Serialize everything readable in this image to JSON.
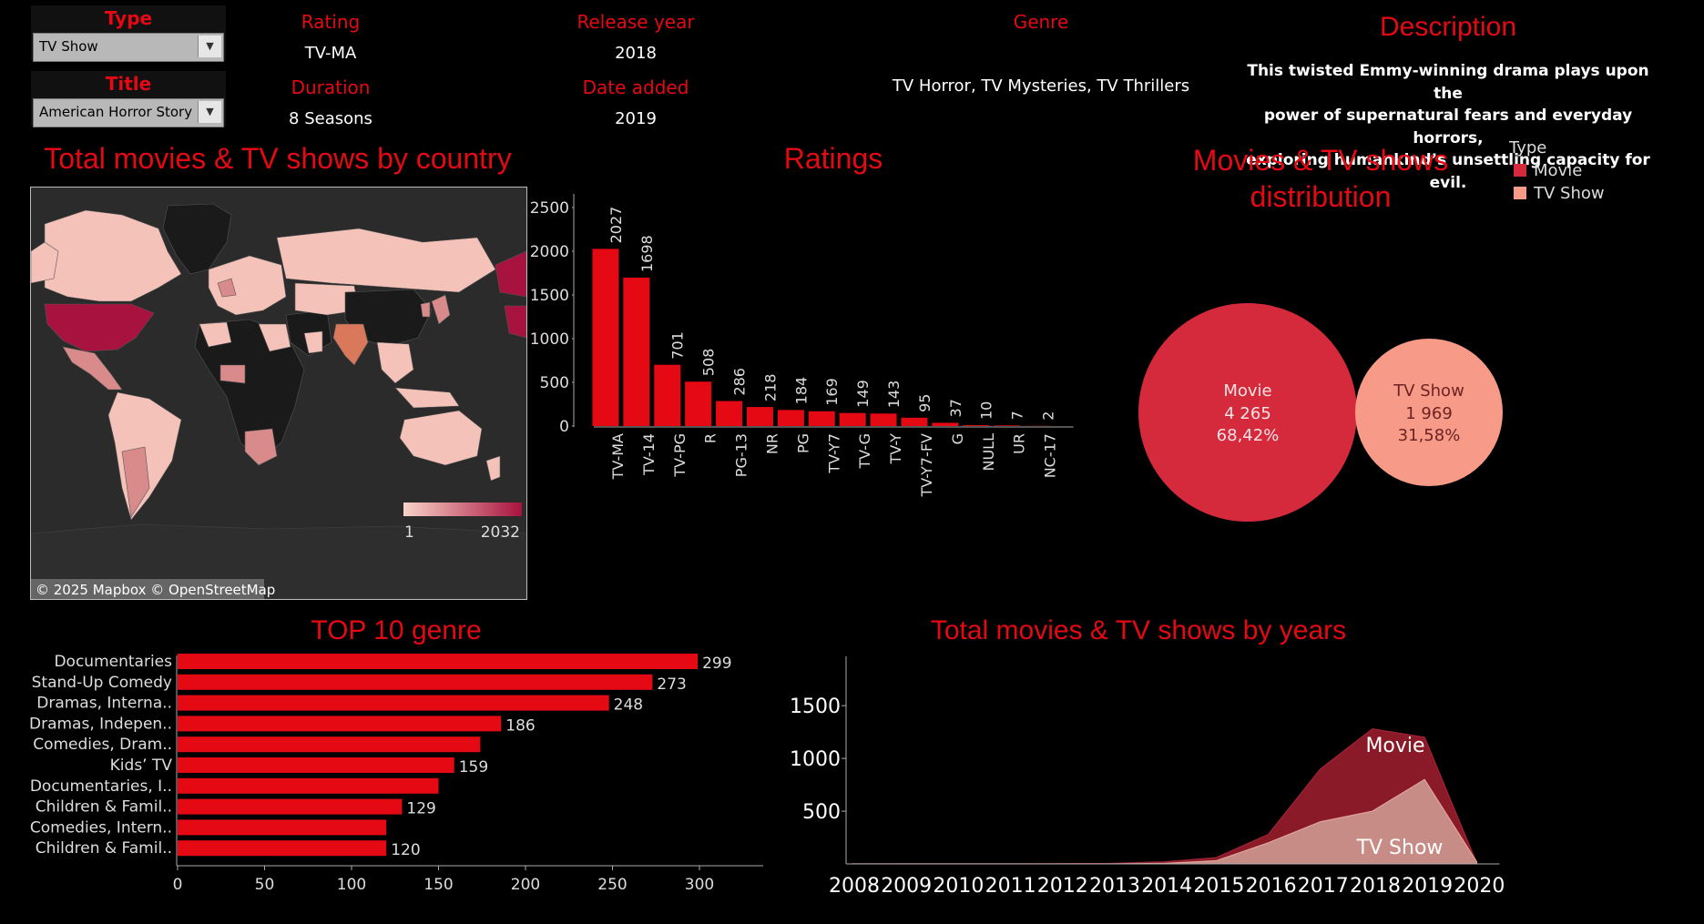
{
  "filters": {
    "type": {
      "label": "Type",
      "value": "TV Show"
    },
    "title": {
      "label": "Title",
      "value": "American Horror Story"
    }
  },
  "info": {
    "rating": {
      "label": "Rating",
      "value": "TV-MA"
    },
    "release_year": {
      "label": "Release year",
      "value": "2018"
    },
    "duration": {
      "label": "Duration",
      "value": "8 Seasons"
    },
    "date_added": {
      "label": "Date added",
      "value": "2019"
    },
    "genre": {
      "label": "Genre",
      "value": "TV Horror, TV Mysteries, TV Thrillers"
    },
    "description": {
      "label": "Description",
      "lines": [
        "This twisted Emmy-winning drama plays upon the",
        "power of supernatural fears and everyday horrors,",
        "exploring humankind’s unsettling capacity for evil."
      ]
    }
  },
  "map": {
    "title": "Total movies & TV shows by country",
    "legend_min": "1",
    "legend_max": "2032",
    "attribution": "© 2025 Mapbox © OpenStreetMap",
    "colors": {
      "ocean": "#2b2b2b",
      "low": "#f4c2b8",
      "mid": "#d98a8a",
      "high": "#a8123e",
      "none": "#1a1a1a"
    }
  },
  "ratings_title": "Ratings",
  "distribution": {
    "title_line1": "Movies & TV shows",
    "title_line2": "distribution",
    "legend_title": "Type",
    "items": [
      {
        "name": "Movie",
        "count": "4 265",
        "pct": "68,42%",
        "color": "#d42a3c"
      },
      {
        "name": "TV Show",
        "count": "1 969",
        "pct": "31,58%",
        "color": "#f79b88"
      }
    ]
  },
  "genre_title": "TOP 10 genre",
  "years_title": "Total movies & TV shows by years",
  "chart_data": [
    {
      "type": "bar",
      "title": "Ratings",
      "categories": [
        "TV-MA",
        "TV-14",
        "TV-PG",
        "R",
        "PG-13",
        "NR",
        "PG",
        "TV-Y7",
        "TV-G",
        "TV-Y",
        "TV-Y7-FV",
        "G",
        "NULL",
        "UR",
        "NC-17"
      ],
      "values": [
        2027,
        1698,
        701,
        508,
        286,
        218,
        184,
        169,
        149,
        143,
        95,
        37,
        10,
        7,
        2
      ],
      "ylim": [
        0,
        2500
      ],
      "yticks": [
        0,
        500,
        1000,
        1500,
        2000,
        2500
      ],
      "color": "#e50914"
    },
    {
      "type": "bar",
      "orientation": "horizontal",
      "title": "TOP 10 genre",
      "categories": [
        "Documentaries",
        "Stand-Up Comedy",
        "Dramas, Interna..",
        "Dramas, Indepen..",
        "Comedies, Dram..",
        "Kids’ TV",
        "Documentaries, I..",
        "Children & Famil..",
        "Comedies, Intern..",
        "Children & Famil.."
      ],
      "values": [
        299,
        273,
        248,
        186,
        174,
        159,
        150,
        129,
        120,
        120
      ],
      "labels": [
        "299",
        "273",
        "248",
        "186",
        "",
        "159",
        "",
        "129",
        "",
        "120"
      ],
      "xlim": [
        0,
        330
      ],
      "xticks": [
        0,
        50,
        100,
        150,
        200,
        250,
        300
      ],
      "color": "#e50914"
    },
    {
      "type": "area",
      "title": "Total movies & TV shows by years",
      "x": [
        "2008",
        "2009",
        "2010",
        "2011",
        "2012",
        "2013",
        "2014",
        "2015",
        "2016",
        "2017",
        "2018",
        "2019",
        "2020"
      ],
      "series": [
        {
          "name": "TV Show",
          "values": [
            0,
            0,
            0,
            0,
            0,
            0,
            5,
            30,
            200,
            400,
            500,
            800,
            20
          ],
          "color": "#c88c86"
        },
        {
          "name": "Movie",
          "values": [
            0,
            1,
            1,
            1,
            2,
            5,
            20,
            60,
            280,
            900,
            1280,
            1200,
            10
          ],
          "color": "#8b1a28"
        }
      ],
      "yticks": [
        500,
        1000,
        1500
      ],
      "ylim": [
        0,
        1950
      ]
    }
  ]
}
